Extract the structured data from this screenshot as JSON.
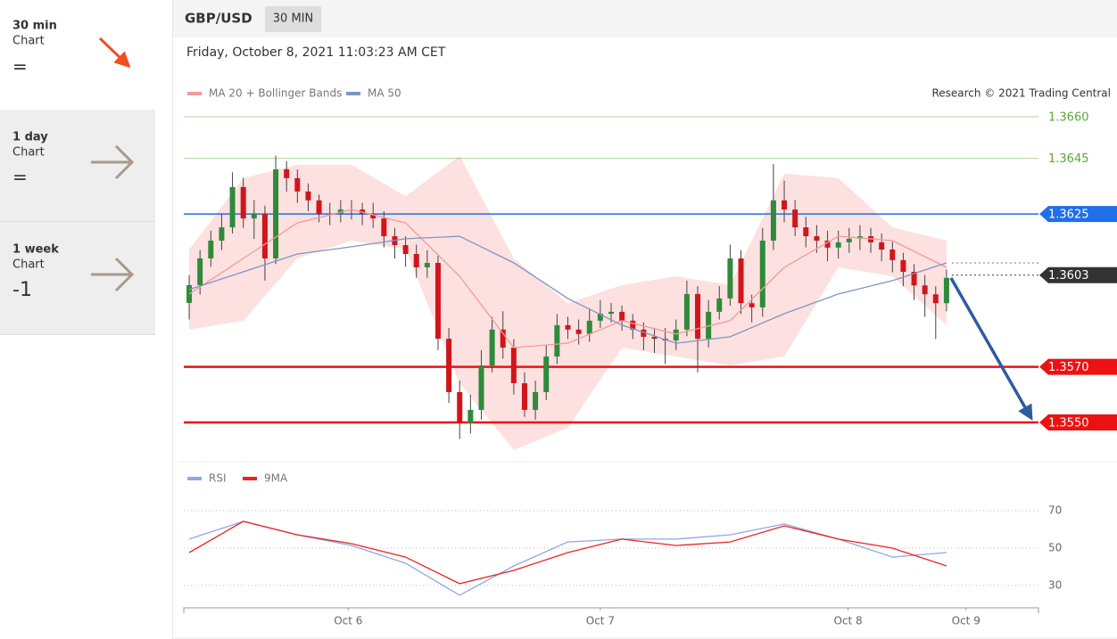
{
  "sidebar": [
    {
      "period": "30 min",
      "label": "Chart",
      "signal": "="
    },
    {
      "period": "1 day",
      "label": "Chart",
      "signal": "="
    },
    {
      "period": "1 week",
      "label": "Chart",
      "signal": "-1"
    }
  ],
  "chart_data": {
    "type": "candlestick",
    "symbol": "GBP/USD",
    "timeframe": "30 MIN",
    "timestamp": "Friday, October 8, 2021 11:03:23 AM CET",
    "credit": "Research © 2021 Trading Central",
    "xlim": [
      -0.5,
      78.5
    ],
    "xticks": [
      {
        "value": 14.7,
        "label": "Oct 6"
      },
      {
        "value": 38.0,
        "label": "Oct 7"
      },
      {
        "value": 60.9,
        "label": "Oct 8"
      },
      {
        "value": 71.8,
        "label": "Oct 9"
      }
    ],
    "ylim": [
      1.3537,
      1.3664
    ],
    "candles": {
      "up_color": "#2e8b3a",
      "down_color": "#d0161b",
      "open": [
        1.3593,
        1.35994,
        1.3609,
        1.36154,
        1.36202,
        1.36347,
        1.36234,
        1.3625,
        1.3609,
        1.36411,
        1.36379,
        1.36331,
        1.36299,
        1.3625,
        1.3625,
        1.36266,
        1.36266,
        1.3625,
        1.36234,
        1.3617,
        1.36138,
        1.36106,
        1.36058,
        1.36074,
        1.35801,
        1.35609,
        1.35497,
        1.35545,
        1.35705,
        1.35834,
        1.35769,
        1.35641,
        1.35545,
        1.35609,
        1.35737,
        1.3585,
        1.35834,
        1.35818,
        1.35866,
        1.35891,
        1.35898,
        1.35866,
        1.35834,
        1.35808,
        1.35801,
        1.35795,
        1.35834,
        1.35962,
        1.35801,
        1.35898,
        1.35946,
        1.3609,
        1.35929,
        1.35914,
        1.36154,
        1.36299,
        1.36266,
        1.36202,
        1.3617,
        1.36154,
        1.36129,
        1.36148,
        1.36161,
        1.3617,
        1.36148,
        1.36122,
        1.36084,
        1.36042,
        1.35993,
        1.35961,
        1.35929
      ],
      "high": [
        1.3603,
        1.3612,
        1.3619,
        1.3625,
        1.364,
        1.3638,
        1.363,
        1.3628,
        1.3646,
        1.3644,
        1.3641,
        1.3636,
        1.3632,
        1.3629,
        1.363,
        1.363,
        1.3629,
        1.3629,
        1.3626,
        1.362,
        1.3617,
        1.3614,
        1.3612,
        1.361,
        1.3584,
        1.3565,
        1.356,
        1.3576,
        1.3588,
        1.359,
        1.358,
        1.3568,
        1.3565,
        1.3578,
        1.3589,
        1.3588,
        1.3587,
        1.3591,
        1.3594,
        1.3593,
        1.3592,
        1.3589,
        1.3586,
        1.3584,
        1.3584,
        1.3587,
        1.3601,
        1.3599,
        1.3594,
        1.3599,
        1.3614,
        1.3612,
        1.3596,
        1.362,
        1.3643,
        1.3637,
        1.363,
        1.3624,
        1.3621,
        1.3619,
        1.3619,
        1.362,
        1.3621,
        1.362,
        1.3618,
        1.3615,
        1.3611,
        1.3607,
        1.3603,
        1.3599,
        1.3605
      ],
      "low": [
        1.3587,
        1.3596,
        1.3606,
        1.3612,
        1.3618,
        1.362,
        1.3616,
        1.3601,
        1.3607,
        1.3633,
        1.3629,
        1.3626,
        1.3622,
        1.3621,
        1.3622,
        1.3623,
        1.3621,
        1.362,
        1.3613,
        1.3609,
        1.3606,
        1.3602,
        1.3602,
        1.3576,
        1.3557,
        1.3544,
        1.3546,
        1.3551,
        1.3568,
        1.3573,
        1.356,
        1.3552,
        1.3551,
        1.3558,
        1.3571,
        1.358,
        1.3578,
        1.3579,
        1.3584,
        1.3586,
        1.3583,
        1.358,
        1.3576,
        1.3575,
        1.3571,
        1.3576,
        1.3581,
        1.3568,
        1.3577,
        1.3587,
        1.3592,
        1.3589,
        1.3586,
        1.3588,
        1.3612,
        1.3622,
        1.3617,
        1.3613,
        1.3611,
        1.3608,
        1.3609,
        1.3611,
        1.3612,
        1.3611,
        1.3608,
        1.3604,
        1.3599,
        1.3594,
        1.3588,
        1.358,
        1.359
      ],
      "close": [
        1.35994,
        1.3609,
        1.36154,
        1.36202,
        1.36347,
        1.36234,
        1.3625,
        1.3609,
        1.36411,
        1.36379,
        1.36331,
        1.36299,
        1.3625,
        1.3625,
        1.36266,
        1.36266,
        1.3625,
        1.36234,
        1.3617,
        1.36138,
        1.36106,
        1.36058,
        1.36074,
        1.35801,
        1.35609,
        1.35497,
        1.35545,
        1.35705,
        1.35834,
        1.35769,
        1.35641,
        1.35545,
        1.35609,
        1.35737,
        1.3585,
        1.35834,
        1.35818,
        1.35866,
        1.35891,
        1.35898,
        1.35866,
        1.35834,
        1.35808,
        1.35801,
        1.35795,
        1.35834,
        1.35962,
        1.35801,
        1.35898,
        1.35946,
        1.3609,
        1.35929,
        1.35914,
        1.36154,
        1.36299,
        1.36266,
        1.36202,
        1.3617,
        1.36154,
        1.36129,
        1.36148,
        1.36161,
        1.3617,
        1.36148,
        1.36122,
        1.36084,
        1.36042,
        1.35993,
        1.35961,
        1.35929,
        1.3602
      ]
    },
    "overlays": [
      {
        "name": "MA 20 + Bollinger Bands",
        "color": "#f29a9a",
        "band_color": "#fde0e0",
        "x": [
          0,
          5,
          10,
          15,
          20,
          25,
          30,
          35,
          40,
          45,
          50,
          55,
          60,
          65,
          70
        ],
        "values": [
          1.35962,
          1.3609,
          1.36218,
          1.36266,
          1.36218,
          1.36026,
          1.35769,
          1.35785,
          1.35866,
          1.35818,
          1.35866,
          1.36058,
          1.3617,
          1.36154,
          1.36058
        ],
        "upper": [
          1.36122,
          1.36379,
          1.36427,
          1.36427,
          1.36314,
          1.36459,
          1.3609,
          1.35929,
          1.35994,
          1.36026,
          1.35994,
          1.36395,
          1.36379,
          1.36202,
          1.36154
        ],
        "lower": [
          1.35834,
          1.35866,
          1.3609,
          1.36154,
          1.36122,
          1.35641,
          1.35401,
          1.35481,
          1.35769,
          1.35737,
          1.35705,
          1.35737,
          1.36058,
          1.36026,
          1.3585
        ]
      },
      {
        "name": "MA 50",
        "color": "#7f95c4",
        "x": [
          0,
          5,
          10,
          15,
          20,
          25,
          30,
          35,
          40,
          45,
          50,
          55,
          60,
          65,
          70
        ],
        "values": [
          1.35978,
          1.36042,
          1.36106,
          1.36132,
          1.36161,
          1.3617,
          1.36074,
          1.35946,
          1.3585,
          1.35785,
          1.35808,
          1.35891,
          1.35962,
          1.3601,
          1.36074
        ]
      }
    ],
    "levels": [
      {
        "value": 1.366,
        "label": "1.3660",
        "color": "#5aa832",
        "tag": false,
        "dotted": false
      },
      {
        "value": 1.3645,
        "label": "1.3645",
        "color": "#5aa832",
        "tag": false,
        "dotted": false
      },
      {
        "value": 1.3625,
        "label": "1.3625",
        "color": "#1f6fe8",
        "tag": true,
        "dotted": false
      },
      {
        "value": 1.3603,
        "label": "1.3603",
        "color": "#333333",
        "tag": true,
        "dotted": true
      },
      {
        "value": 1.357,
        "label": "1.3570",
        "color": "#ee1111",
        "tag": true,
        "dotted": false
      },
      {
        "value": 1.355,
        "label": "1.3550",
        "color": "#ee1111",
        "tag": true,
        "dotted": false
      }
    ],
    "forecast_color": "#2f5c9e",
    "rsi": {
      "ylim": [
        18,
        79
      ],
      "yticks": [
        70,
        50,
        30
      ],
      "series": [
        {
          "name": "RSI",
          "color": "#8ea8e6",
          "x": [
            0,
            5,
            10,
            15,
            20,
            25,
            30,
            35,
            40,
            45,
            50,
            55,
            60,
            65,
            70
          ],
          "values": [
            54.8,
            64.3,
            57.1,
            51.4,
            41.9,
            24.8,
            40.5,
            53.3,
            54.8,
            54.8,
            57.1,
            62.9,
            54.8,
            45.2,
            47.6
          ]
        },
        {
          "name": "9MA",
          "color": "#ee2222",
          "x": [
            0,
            5,
            10,
            15,
            20,
            25,
            30,
            35,
            40,
            45,
            50,
            55,
            60,
            65,
            70
          ],
          "values": [
            47.6,
            64.3,
            57.1,
            52.4,
            45.2,
            31.0,
            38.1,
            47.6,
            54.8,
            51.4,
            53.3,
            61.9,
            54.8,
            50.0,
            40.5
          ]
        }
      ]
    }
  }
}
